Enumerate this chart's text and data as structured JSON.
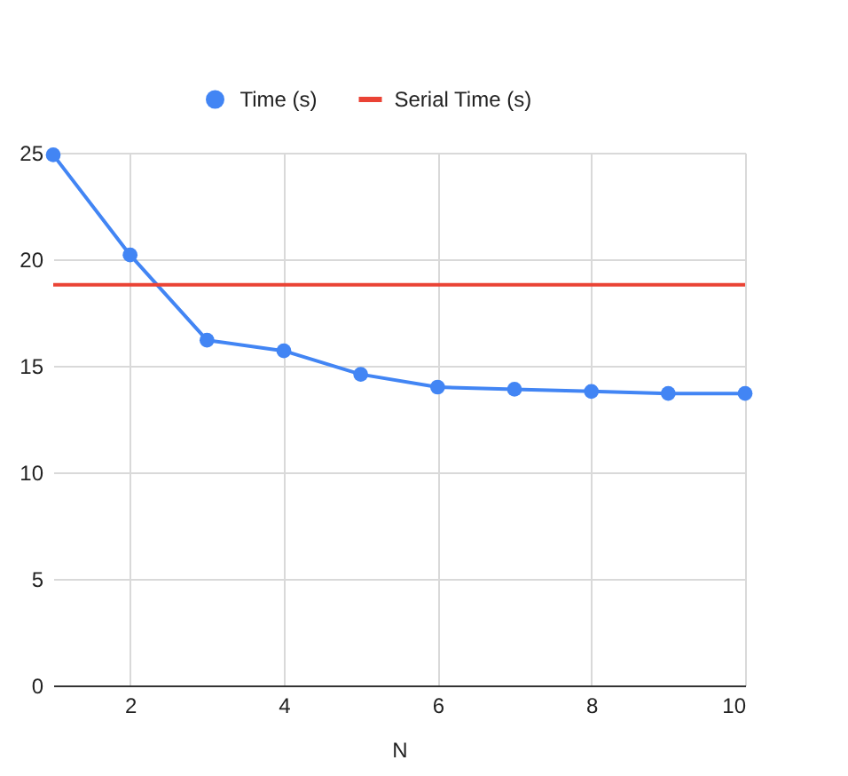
{
  "chart_data": {
    "type": "line",
    "xlabel": "N",
    "x": [
      1,
      2,
      3,
      4,
      5,
      6,
      7,
      8,
      9,
      10
    ],
    "series": [
      {
        "name": "Time (s)",
        "color": "#4285f4",
        "marker": "circle",
        "values": [
          24.9,
          20.2,
          16.2,
          15.7,
          14.6,
          14.0,
          13.9,
          13.8,
          13.7,
          13.7
        ]
      },
      {
        "name": "Serial Time (s)",
        "color": "#ea4335",
        "marker": "none",
        "values": [
          18.8,
          18.8,
          18.8,
          18.8,
          18.8,
          18.8,
          18.8,
          18.8,
          18.8,
          18.8
        ]
      }
    ],
    "xlim": [
      1,
      10
    ],
    "xticks": [
      2,
      4,
      6,
      8,
      10
    ],
    "ylim": [
      0,
      25
    ],
    "yticks": [
      0,
      5,
      10,
      15,
      20,
      25
    ],
    "grid": true,
    "legend": "top",
    "line_style": "solid"
  }
}
